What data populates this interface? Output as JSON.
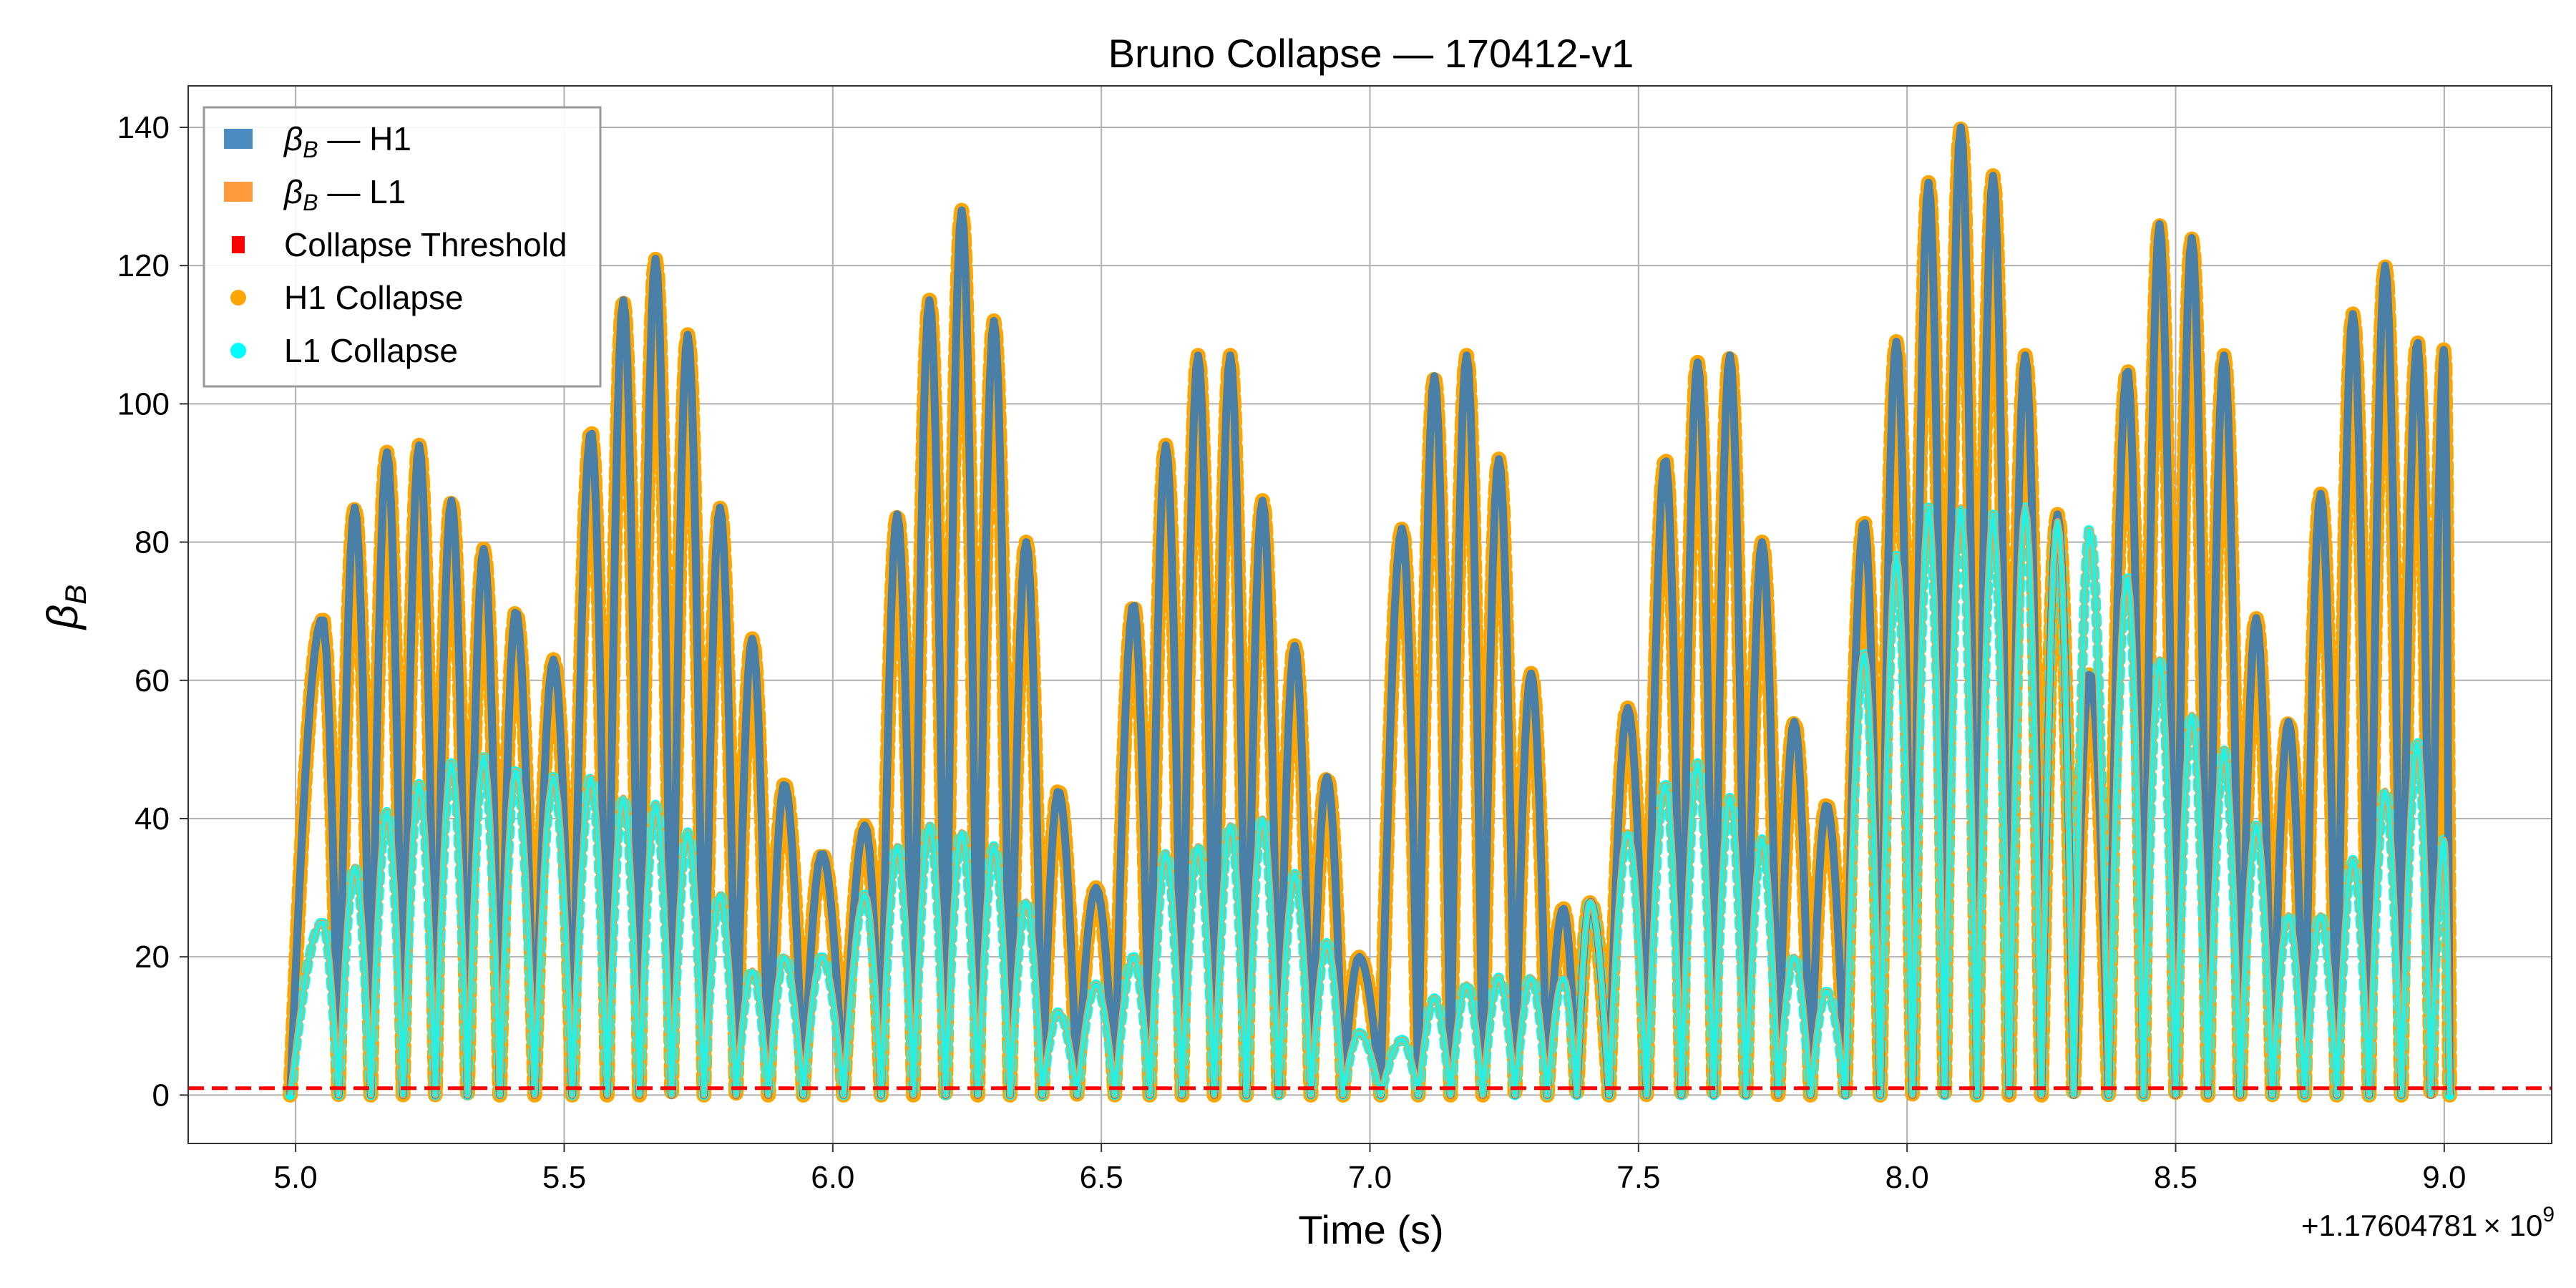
{
  "chart_data": {
    "type": "line",
    "title": "Bruno Collapse — 170412-v1",
    "xlabel": "Time (s)",
    "ylabel_symbol": "β",
    "ylabel_sub": "B",
    "x_offset_text": "+1.17604781",
    "x_offset_exp": "× 10",
    "x_offset_pow": "9",
    "xlim": [
      4.8,
      9.2
    ],
    "ylim": [
      -7,
      146
    ],
    "xticks": [
      5.0,
      5.5,
      6.0,
      6.5,
      7.0,
      7.5,
      8.0,
      8.5,
      9.0
    ],
    "xtick_labels": [
      "5.0",
      "5.5",
      "6.0",
      "6.5",
      "7.0",
      "7.5",
      "8.0",
      "8.5",
      "9.0"
    ],
    "yticks": [
      0,
      20,
      40,
      60,
      80,
      100,
      120,
      140
    ],
    "ytick_labels": [
      "0",
      "20",
      "40",
      "60",
      "80",
      "100",
      "120",
      "140"
    ],
    "grid": true,
    "legend_position": "top-left",
    "threshold": 1,
    "legend": [
      {
        "kind": "patch",
        "sym": "β",
        "sub": "B",
        "suffix": " — H1",
        "color": "#4a8cc2"
      },
      {
        "kind": "patch",
        "sym": "β",
        "sub": "B",
        "suffix": " — L1",
        "color": "#ff9a3c"
      },
      {
        "kind": "square",
        "text": "Collapse Threshold",
        "color": "#ff0000"
      },
      {
        "kind": "dot",
        "text": "H1 Collapse",
        "color": "#ffa500"
      },
      {
        "kind": "dot",
        "text": "L1 Collapse",
        "color": "#00ffff"
      }
    ],
    "colors": {
      "h1": "#4a7fa8",
      "l1": "#ff9a3c",
      "h1_marker": "#ffa500",
      "l1_marker": "#00ffff",
      "threshold": "#ff0000",
      "grid": "#b0b0b0"
    },
    "series": [
      {
        "name": "β_B — H1",
        "peaks_x": [
          5.05,
          5.11,
          5.17,
          5.23,
          5.29,
          5.35,
          5.41,
          5.48,
          5.55,
          5.61,
          5.67,
          5.73,
          5.79,
          5.85,
          5.91,
          5.98,
          6.06,
          6.12,
          6.18,
          6.24,
          6.3,
          6.36,
          6.42,
          6.49,
          6.56,
          6.62,
          6.68,
          6.74,
          6.8,
          6.86,
          6.92,
          6.98,
          7.06,
          7.12,
          7.18,
          7.24,
          7.3,
          7.36,
          7.41,
          7.48,
          7.55,
          7.61,
          7.67,
          7.73,
          7.79,
          7.85,
          7.92,
          7.98,
          8.04,
          8.1,
          8.16,
          8.22,
          8.28,
          8.34,
          8.41,
          8.47,
          8.53,
          8.59,
          8.65,
          8.71,
          8.77,
          8.83,
          8.89,
          8.95,
          9.0
        ],
        "peaks_y": [
          69,
          85,
          93,
          94,
          86,
          79,
          70,
          63,
          96,
          115,
          121,
          110,
          85,
          66,
          45,
          35,
          39,
          84,
          115,
          128,
          112,
          80,
          44,
          30,
          71,
          94,
          107,
          107,
          86,
          65,
          46,
          20,
          82,
          104,
          107,
          92,
          61,
          27,
          28,
          56,
          92,
          106,
          107,
          80,
          54,
          42,
          83,
          109,
          132,
          140,
          133,
          107,
          84,
          61,
          105,
          126,
          124,
          107,
          69,
          54,
          87,
          113,
          120,
          109,
          108
        ]
      },
      {
        "name": "β_B — L1",
        "peaks_x": [
          5.05,
          5.11,
          5.17,
          5.23,
          5.29,
          5.35,
          5.41,
          5.48,
          5.55,
          5.61,
          5.67,
          5.73,
          5.79,
          5.85,
          5.91,
          5.98,
          6.06,
          6.12,
          6.18,
          6.24,
          6.3,
          6.36,
          6.42,
          6.49,
          6.56,
          6.62,
          6.68,
          6.74,
          6.8,
          6.86,
          6.92,
          6.98,
          7.06,
          7.12,
          7.18,
          7.24,
          7.3,
          7.36,
          7.41,
          7.48,
          7.55,
          7.61,
          7.67,
          7.73,
          7.79,
          7.85,
          7.92,
          7.98,
          8.04,
          8.1,
          8.16,
          8.22,
          8.28,
          8.34,
          8.41,
          8.47,
          8.53,
          8.59,
          8.65,
          8.71,
          8.77,
          8.83,
          8.89,
          8.95,
          9.0
        ],
        "peaks_y": [
          25,
          33,
          41,
          45,
          48,
          49,
          47,
          46,
          46,
          43,
          42,
          38,
          29,
          18,
          20,
          20,
          29,
          36,
          39,
          38,
          36,
          28,
          12,
          16,
          20,
          35,
          36,
          39,
          40,
          32,
          22,
          9,
          8,
          14,
          16,
          17,
          17,
          17,
          28,
          38,
          45,
          48,
          43,
          37,
          20,
          15,
          64,
          78,
          85,
          85,
          84,
          85,
          83,
          82,
          75,
          63,
          55,
          50,
          39,
          26,
          26,
          34,
          44,
          51,
          37
        ]
      }
    ]
  }
}
